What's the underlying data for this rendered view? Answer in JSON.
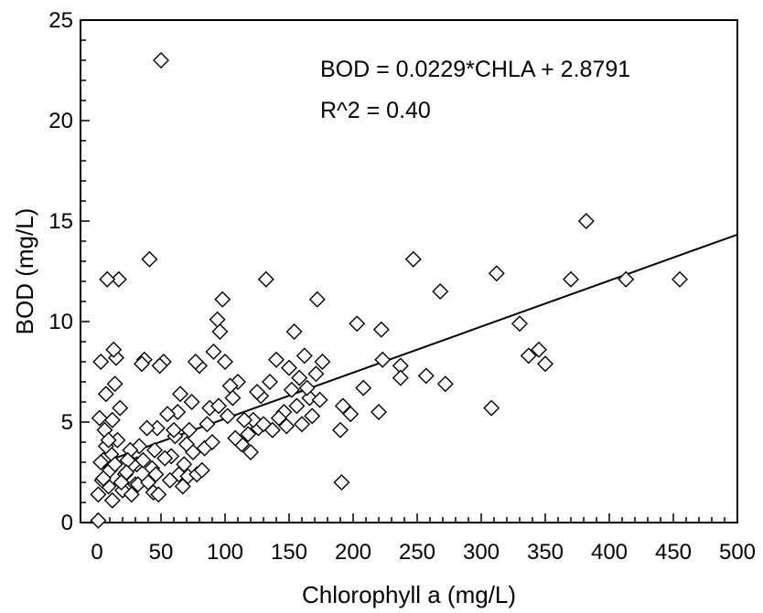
{
  "chart_data": {
    "type": "scatter",
    "xlabel": "Chlorophyll a (mg/L)",
    "ylabel": "BOD (mg/L)",
    "xlim": [
      0,
      500
    ],
    "ylim": [
      0,
      25
    ],
    "x_ticks": [
      0,
      50,
      100,
      150,
      200,
      250,
      300,
      350,
      400,
      450,
      500
    ],
    "y_ticks": [
      0,
      5,
      10,
      15,
      20,
      25
    ],
    "x_tick_labels": [
      "0",
      "50",
      "100",
      "150",
      "200",
      "250",
      "300",
      "350",
      "400",
      "450",
      "500"
    ],
    "y_tick_labels": [
      "0",
      "5",
      "10",
      "15",
      "20",
      "25"
    ],
    "grid": false,
    "marker": "open-diamond",
    "annotations": [
      "BOD = 0.0229*CHLA + 2.8791",
      "R^2 = 0.40"
    ],
    "points": [
      [
        50,
        23.0
      ],
      [
        382,
        15.0
      ],
      [
        455,
        12.1
      ],
      [
        413,
        12.1
      ],
      [
        370,
        12.1
      ],
      [
        312,
        12.4
      ],
      [
        308,
        5.7
      ],
      [
        330,
        9.9
      ],
      [
        337,
        8.3
      ],
      [
        345,
        8.6
      ],
      [
        350,
        7.9
      ],
      [
        247,
        13.1
      ],
      [
        268,
        11.5
      ],
      [
        257,
        7.3
      ],
      [
        272,
        6.9
      ],
      [
        237,
        7.8
      ],
      [
        237,
        7.2
      ],
      [
        203,
        9.9
      ],
      [
        222,
        9.6
      ],
      [
        223,
        8.1
      ],
      [
        208,
        6.7
      ],
      [
        220,
        5.5
      ],
      [
        192,
        5.8
      ],
      [
        198,
        5.4
      ],
      [
        190,
        4.6
      ],
      [
        191,
        2.0
      ],
      [
        172,
        11.1
      ],
      [
        176,
        8.0
      ],
      [
        171,
        7.4
      ],
      [
        166,
        6.2
      ],
      [
        162,
        8.3
      ],
      [
        158,
        7.2
      ],
      [
        154,
        9.5
      ],
      [
        150,
        7.7
      ],
      [
        152,
        6.6
      ],
      [
        146,
        5.5
      ],
      [
        140,
        8.1
      ],
      [
        135,
        7.0
      ],
      [
        132,
        12.1
      ],
      [
        128,
        6.3
      ],
      [
        126,
        4.7
      ],
      [
        122,
        5.1
      ],
      [
        118,
        4.4
      ],
      [
        113,
        3.9
      ],
      [
        110,
        7.0
      ],
      [
        104,
        6.8
      ],
      [
        100,
        8.0
      ],
      [
        98,
        11.1
      ],
      [
        96,
        9.5
      ],
      [
        94,
        10.1
      ],
      [
        91,
        8.5
      ],
      [
        88,
        5.7
      ],
      [
        86,
        4.9
      ],
      [
        84,
        3.7
      ],
      [
        80,
        7.8
      ],
      [
        77,
        8.0
      ],
      [
        74,
        6.0
      ],
      [
        72,
        4.6
      ],
      [
        70,
        3.9
      ],
      [
        68,
        2.9
      ],
      [
        65,
        6.4
      ],
      [
        63,
        5.5
      ],
      [
        61,
        4.3
      ],
      [
        58,
        3.3
      ],
      [
        55,
        5.4
      ],
      [
        52,
        8.0
      ],
      [
        49,
        7.8
      ],
      [
        47,
        4.7
      ],
      [
        45,
        3.6
      ],
      [
        43,
        2.7
      ],
      [
        41,
        13.1
      ],
      [
        39,
        4.7
      ],
      [
        37,
        8.1
      ],
      [
        35,
        7.9
      ],
      [
        33,
        3.8
      ],
      [
        31,
        2.9
      ],
      [
        30,
        1.9
      ],
      [
        28,
        2.9
      ],
      [
        26,
        3.6
      ],
      [
        24,
        3.1
      ],
      [
        22,
        2.4
      ],
      [
        20,
        1.6
      ],
      [
        18,
        5.7
      ],
      [
        17,
        12.1
      ],
      [
        16,
        4.1
      ],
      [
        15,
        8.2
      ],
      [
        14,
        6.9
      ],
      [
        13,
        8.6
      ],
      [
        12,
        5.1
      ],
      [
        11,
        3.4
      ],
      [
        10,
        2.6
      ],
      [
        9,
        1.8
      ],
      [
        8,
        12.1
      ],
      [
        7,
        6.4
      ],
      [
        6,
        4.6
      ],
      [
        5,
        3.1
      ],
      [
        4,
        2.1
      ],
      [
        3,
        8.0
      ],
      [
        2,
        5.2
      ],
      [
        1,
        1.4
      ],
      [
        1,
        0.1
      ],
      [
        3,
        3.0
      ],
      [
        5,
        2.2
      ],
      [
        7,
        3.8
      ],
      [
        9,
        4.1
      ],
      [
        12,
        1.1
      ],
      [
        14,
        2.9
      ],
      [
        19,
        2.0
      ],
      [
        23,
        2.5
      ],
      [
        27,
        1.4
      ],
      [
        32,
        1.9
      ],
      [
        36,
        3.1
      ],
      [
        40,
        2.0
      ],
      [
        44,
        1.5
      ],
      [
        46,
        2.4
      ],
      [
        48,
        1.4
      ],
      [
        53,
        3.2
      ],
      [
        57,
        2.1
      ],
      [
        60,
        4.6
      ],
      [
        64,
        2.4
      ],
      [
        67,
        1.8
      ],
      [
        71,
        2.3
      ],
      [
        75,
        3.5
      ],
      [
        78,
        2.4
      ],
      [
        82,
        2.6
      ],
      [
        90,
        4.0
      ],
      [
        95,
        5.8
      ],
      [
        102,
        5.3
      ],
      [
        106,
        6.2
      ],
      [
        108,
        4.2
      ],
      [
        115,
        5.1
      ],
      [
        120,
        3.5
      ],
      [
        125,
        6.5
      ],
      [
        130,
        4.9
      ],
      [
        137,
        4.6
      ],
      [
        142,
        5.2
      ],
      [
        148,
        4.8
      ],
      [
        156,
        5.8
      ],
      [
        160,
        4.9
      ],
      [
        164,
        6.7
      ],
      [
        168,
        5.3
      ],
      [
        174,
        6.1
      ]
    ],
    "fit_line": [
      [
        0,
        2.8791
      ],
      [
        500,
        14.3291
      ]
    ]
  }
}
